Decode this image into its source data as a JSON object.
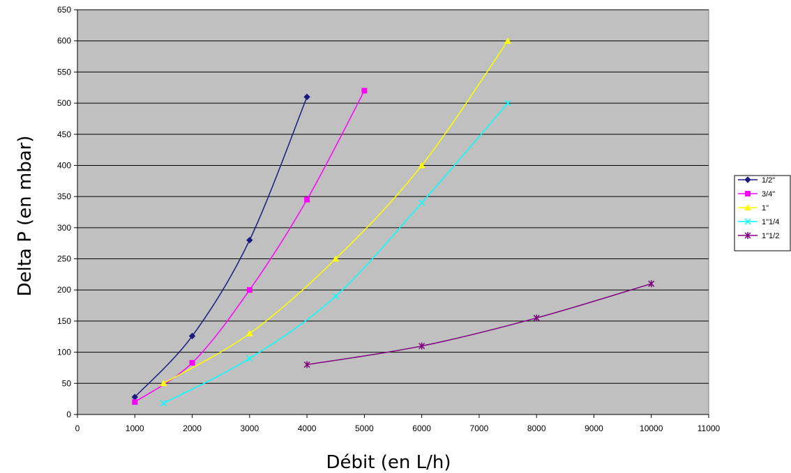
{
  "chart_data": {
    "type": "line",
    "title": "",
    "xlabel": "Débit (en L/h)",
    "ylabel": "Delta P (en mbar)",
    "xlim": [
      0,
      11000
    ],
    "ylim": [
      0,
      650
    ],
    "xticks": [
      0,
      1000,
      2000,
      3000,
      4000,
      5000,
      6000,
      7000,
      8000,
      9000,
      10000,
      11000
    ],
    "yticks": [
      0,
      50,
      100,
      150,
      200,
      250,
      300,
      350,
      400,
      450,
      500,
      550,
      600,
      650
    ],
    "grid": "horizontal",
    "plot_background": "#c0c0c0",
    "legend_position": "right",
    "series": [
      {
        "name": "1/2\"",
        "color": "#1a1a80",
        "marker": "diamond",
        "x": [
          1000,
          2000,
          3000,
          4000
        ],
        "y": [
          28,
          126,
          280,
          510
        ]
      },
      {
        "name": "3/4\"",
        "color": "#ff00ff",
        "marker": "square",
        "x": [
          1000,
          2000,
          3000,
          4000,
          5000
        ],
        "y": [
          20,
          83,
          200,
          345,
          520
        ]
      },
      {
        "name": "1\"",
        "color": "#ffff00",
        "marker": "triangle",
        "x": [
          1500,
          3000,
          4500,
          6000,
          7500
        ],
        "y": [
          50,
          130,
          250,
          400,
          600
        ]
      },
      {
        "name": "1\"1/4",
        "color": "#00ffff",
        "marker": "x",
        "x": [
          1500,
          3000,
          4500,
          6000,
          7500
        ],
        "y": [
          18,
          90,
          190,
          340,
          500
        ]
      },
      {
        "name": "1\"1/2",
        "color": "#800080",
        "marker": "star",
        "x": [
          4000,
          6000,
          8000,
          10000
        ],
        "y": [
          80,
          110,
          155,
          210
        ]
      }
    ]
  }
}
